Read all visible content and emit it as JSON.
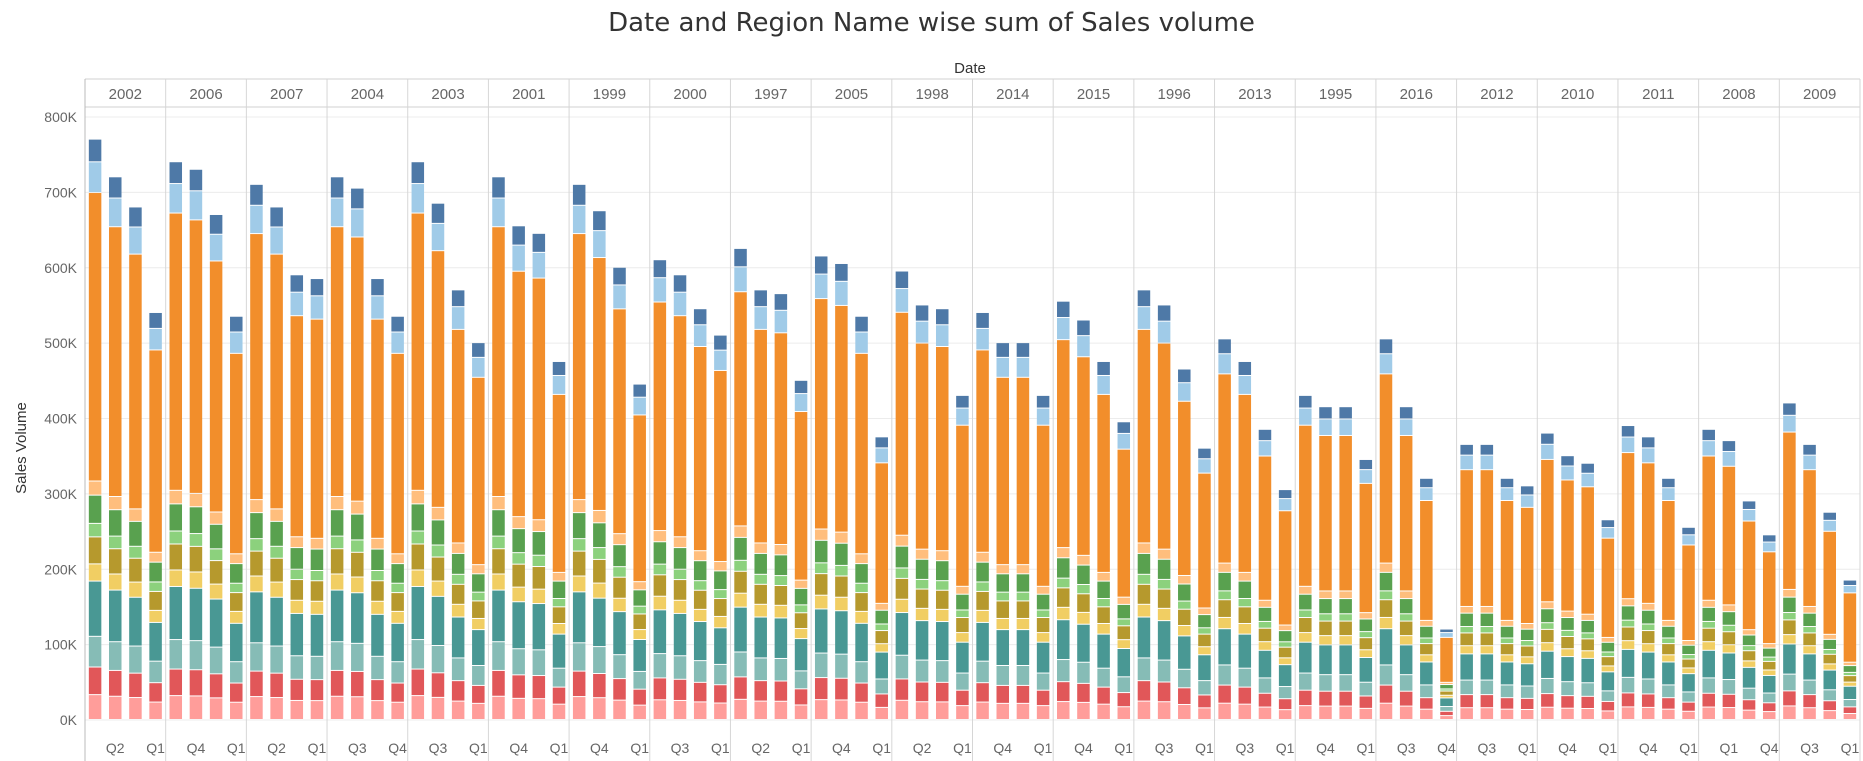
{
  "chart_data": {
    "type": "bar",
    "stacked": true,
    "title": "Date and Region Name wise  sum of Sales volume",
    "column_header": "Date",
    "ylabel": "Sales Volume",
    "ylim": [
      0,
      800000
    ],
    "y_ticks": [
      0,
      100000,
      200000,
      300000,
      400000,
      500000,
      600000,
      700000,
      800000
    ],
    "y_tick_labels": [
      "0K",
      "100K",
      "200K",
      "300K",
      "400K",
      "500K",
      "600K",
      "700K",
      "800K"
    ],
    "grid": true,
    "legend": "none",
    "region_colors": [
      "#FF9D9A",
      "#E15759",
      "#86BCB6",
      "#499894",
      "#F1CE63",
      "#B6992D",
      "#8CD17D",
      "#59A14F",
      "#FFBE7D",
      "#F28E2B",
      "#A0CBE8",
      "#4E79A7"
    ],
    "stack_shares": [
      0.0405,
      0.045,
      0.05,
      0.09,
      0.028,
      0.044,
      0.022,
      0.046,
      0.023,
      0.47,
      0.05,
      0.037
    ],
    "groups": [
      {
        "label": "2002",
        "values": [
          770000,
          720000,
          680000,
          540000
        ],
        "quarter_labels": [
          "",
          "Q2",
          "",
          "Q1"
        ]
      },
      {
        "label": "2006",
        "values": [
          740000,
          730000,
          670000,
          535000
        ],
        "quarter_labels": [
          "",
          "Q4",
          "",
          "Q1"
        ]
      },
      {
        "label": "2007",
        "values": [
          710000,
          680000,
          590000,
          585000
        ],
        "quarter_labels": [
          "",
          "Q2",
          "",
          "Q1"
        ]
      },
      {
        "label": "2004",
        "values": [
          720000,
          705000,
          585000,
          535000
        ],
        "quarter_labels": [
          "",
          "Q3",
          "",
          "Q4"
        ]
      },
      {
        "label": "2003",
        "values": [
          740000,
          685000,
          570000,
          500000
        ],
        "quarter_labels": [
          "",
          "Q3",
          "",
          "Q1"
        ]
      },
      {
        "label": "2001",
        "values": [
          720000,
          655000,
          645000,
          475000
        ],
        "quarter_labels": [
          "",
          "Q4",
          "",
          "Q1"
        ]
      },
      {
        "label": "1999",
        "values": [
          710000,
          675000,
          600000,
          445000
        ],
        "quarter_labels": [
          "",
          "Q4",
          "",
          "Q1"
        ]
      },
      {
        "label": "2000",
        "values": [
          610000,
          590000,
          545000,
          510000
        ],
        "quarter_labels": [
          "",
          "Q3",
          "",
          "Q1"
        ]
      },
      {
        "label": "1997",
        "values": [
          625000,
          570000,
          565000,
          450000
        ],
        "quarter_labels": [
          "",
          "Q2",
          "",
          "Q1"
        ]
      },
      {
        "label": "2005",
        "values": [
          615000,
          605000,
          535000,
          375000
        ],
        "quarter_labels": [
          "",
          "Q4",
          "",
          "Q1"
        ]
      },
      {
        "label": "1998",
        "values": [
          595000,
          550000,
          545000,
          430000
        ],
        "quarter_labels": [
          "",
          "Q2",
          "",
          "Q1"
        ]
      },
      {
        "label": "2014",
        "values": [
          540000,
          500000,
          500000,
          430000
        ],
        "quarter_labels": [
          "",
          "Q4",
          "",
          "Q1"
        ]
      },
      {
        "label": "2015",
        "values": [
          555000,
          530000,
          475000,
          395000
        ],
        "quarter_labels": [
          "",
          "Q4",
          "",
          "Q1"
        ]
      },
      {
        "label": "1996",
        "values": [
          570000,
          550000,
          465000,
          360000
        ],
        "quarter_labels": [
          "",
          "Q3",
          "",
          "Q1"
        ]
      },
      {
        "label": "2013",
        "values": [
          505000,
          475000,
          385000,
          305000
        ],
        "quarter_labels": [
          "",
          "Q3",
          "",
          "Q1"
        ]
      },
      {
        "label": "1995",
        "values": [
          430000,
          415000,
          415000,
          345000
        ],
        "quarter_labels": [
          "",
          "Q4",
          "",
          "Q1"
        ]
      },
      {
        "label": "2016",
        "values": [
          505000,
          415000,
          320000,
          120000
        ],
        "quarter_labels": [
          "",
          "Q3",
          "",
          "Q4"
        ]
      },
      {
        "label": "2012",
        "values": [
          365000,
          365000,
          320000,
          310000
        ],
        "quarter_labels": [
          "",
          "Q3",
          "",
          "Q1"
        ]
      },
      {
        "label": "2010",
        "values": [
          380000,
          350000,
          340000,
          265000
        ],
        "quarter_labels": [
          "",
          "Q4",
          "",
          "Q1"
        ]
      },
      {
        "label": "2011",
        "values": [
          390000,
          375000,
          320000,
          255000
        ],
        "quarter_labels": [
          "",
          "Q4",
          "",
          "Q1"
        ]
      },
      {
        "label": "2008",
        "values": [
          385000,
          370000,
          290000,
          245000
        ],
        "quarter_labels": [
          "",
          "Q1",
          "",
          "Q4"
        ]
      },
      {
        "label": "2009",
        "values": [
          420000,
          365000,
          275000,
          185000
        ],
        "quarter_labels": [
          "",
          "Q3",
          "",
          "Q1"
        ]
      }
    ]
  }
}
